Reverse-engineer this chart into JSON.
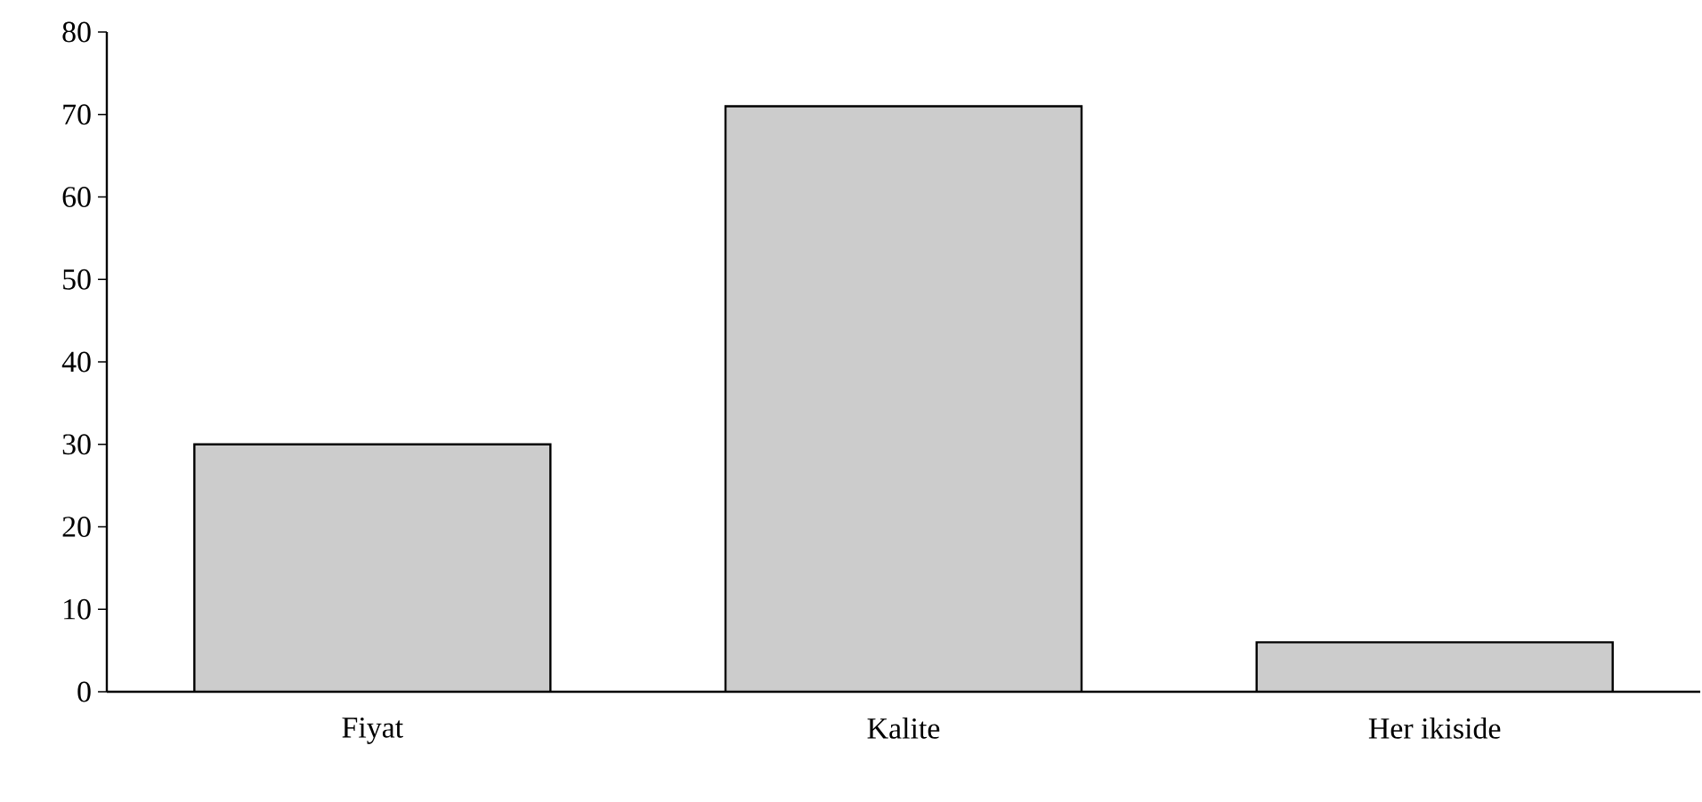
{
  "chart_data": {
    "type": "bar",
    "categories": [
      "Fiyat",
      "Kalite",
      "Her ikiside"
    ],
    "values": [
      30,
      71,
      6
    ],
    "color": "#cccccc",
    "ylim": [
      0,
      80
    ],
    "yticks": [
      0,
      10,
      20,
      30,
      40,
      50,
      60,
      70,
      80
    ],
    "grid": false
  }
}
